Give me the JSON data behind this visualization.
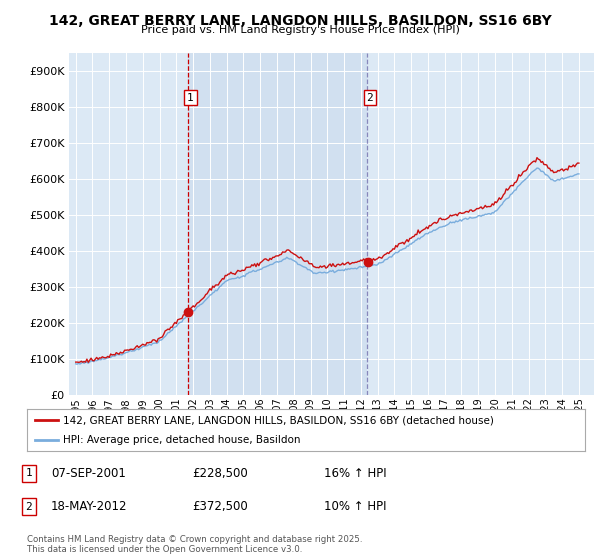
{
  "title": "142, GREAT BERRY LANE, LANGDON HILLS, BASILDON, SS16 6BY",
  "subtitle": "Price paid vs. HM Land Registry's House Price Index (HPI)",
  "legend_line1": "142, GREAT BERRY LANE, LANGDON HILLS, BASILDON, SS16 6BY (detached house)",
  "legend_line2": "HPI: Average price, detached house, Basildon",
  "sale1_date": "07-SEP-2001",
  "sale1_price": "£228,500",
  "sale1_hpi": "16% ↑ HPI",
  "sale2_date": "18-MAY-2012",
  "sale2_price": "£372,500",
  "sale2_hpi": "10% ↑ HPI",
  "footer": "Contains HM Land Registry data © Crown copyright and database right 2025.\nThis data is licensed under the Open Government Licence v3.0.",
  "hpi_color": "#7aaddd",
  "price_color": "#cc1111",
  "sale1_vline_color": "#cc0000",
  "sale2_vline_color": "#8888bb",
  "background_color": "#dce9f5",
  "between_color": "#d0e2f0",
  "ylim": [
    0,
    950000
  ],
  "yticks": [
    0,
    100000,
    200000,
    300000,
    400000,
    500000,
    600000,
    700000,
    800000,
    900000
  ],
  "xlim_start": 1994.6,
  "xlim_end": 2025.9,
  "sale1_x": 2001.69,
  "sale2_x": 2012.38,
  "sale1_price_val": 228500,
  "sale2_price_val": 372500
}
